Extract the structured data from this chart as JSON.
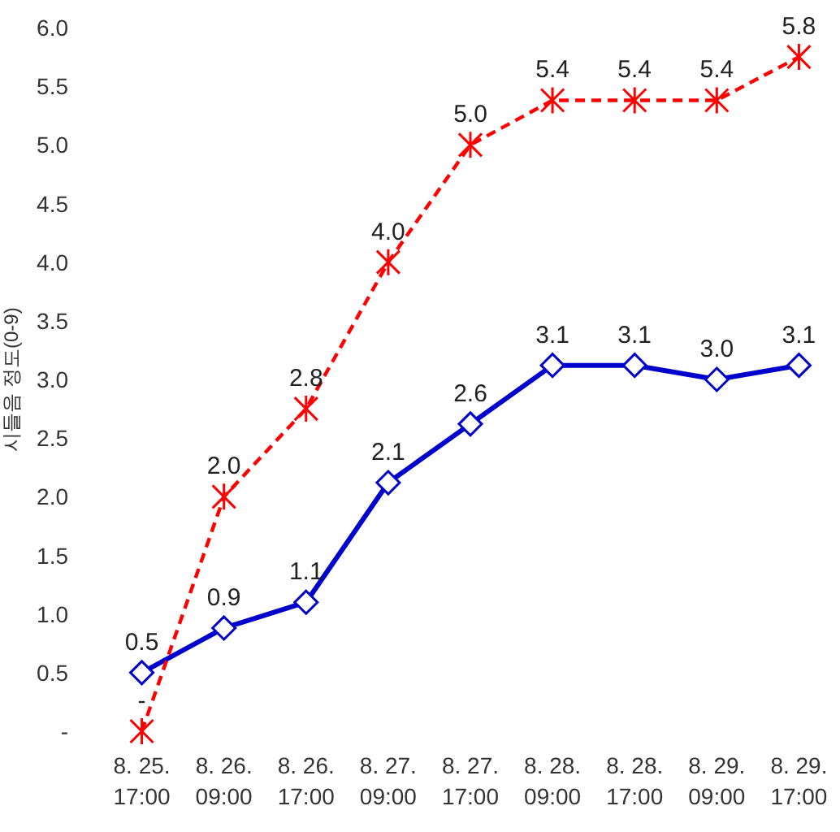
{
  "chart_data": {
    "type": "line",
    "ylabel": "시들음 정도(0-9)",
    "categories": [
      "8. 25. 17:00",
      "8. 26. 09:00",
      "8. 26. 17:00",
      "8. 27. 09:00",
      "8. 27. 17:00",
      "8. 28. 09:00",
      "8. 28. 17:00",
      "8. 29. 09:00",
      "8. 29. 17:00"
    ],
    "ylim": [
      0,
      6
    ],
    "yticks": [
      {
        "value": 0,
        "label": "-"
      },
      0.5,
      {
        "value": 1,
        "label": "1.0"
      },
      1.5,
      {
        "value": 2,
        "label": "2.0"
      },
      2.5,
      {
        "value": 3,
        "label": "3.0"
      },
      3.5,
      {
        "value": 4,
        "label": "4.0"
      },
      4.5,
      {
        "value": 5,
        "label": "5.0"
      },
      5.5,
      {
        "value": 6,
        "label": "6.0"
      }
    ],
    "series": [
      {
        "color": "#0000cc",
        "marker": "diamond",
        "line_style": "solid",
        "values": [
          0.5,
          0.88,
          1.1,
          2.12,
          2.62,
          3.12,
          3.12,
          3.0,
          3.12
        ],
        "value_labels": [
          "0.5",
          "0.9",
          "1.1",
          "2.1",
          "2.6",
          "3.1",
          "3.1",
          "3.0",
          "3.1"
        ]
      },
      {
        "color": "#ff0000",
        "marker": "cross",
        "line_style": "dashed",
        "values": [
          0,
          2.0,
          2.75,
          4.0,
          5.0,
          5.38,
          5.38,
          5.38,
          5.75
        ],
        "value_labels": [
          "-",
          "2.0",
          "2.8",
          "4.0",
          "5.0",
          "5.4",
          "5.4",
          "5.4",
          "5.8"
        ]
      }
    ]
  }
}
